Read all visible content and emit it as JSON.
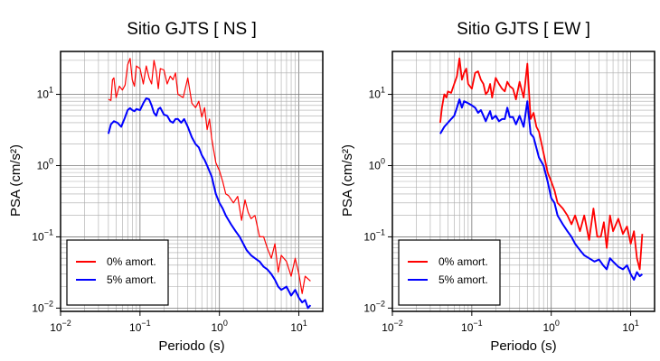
{
  "chart_data": [
    {
      "type": "line",
      "title": "Sitio GJTS [ NS ]",
      "xlabel": "Periodo (s)",
      "ylabel": "PSA (cm/s²)",
      "xscale": "log",
      "yscale": "log",
      "xlim": [
        0.01,
        20
      ],
      "ylim": [
        0.009,
        40
      ],
      "grid": true,
      "legend_position": "bottom-left",
      "x_ticks": [
        {
          "value": 0.01,
          "base": "10",
          "exp": "−2"
        },
        {
          "value": 0.1,
          "base": "10",
          "exp": "−1"
        },
        {
          "value": 1,
          "base": "10",
          "exp": "0"
        },
        {
          "value": 10,
          "base": "10",
          "exp": "1"
        }
      ],
      "y_ticks": [
        {
          "value": 0.01,
          "base": "10",
          "exp": "−2"
        },
        {
          "value": 0.1,
          "base": "10",
          "exp": "−1"
        },
        {
          "value": 1,
          "base": "10",
          "exp": "0"
        },
        {
          "value": 10,
          "base": "10",
          "exp": "1"
        }
      ],
      "series": [
        {
          "name": "0% amort.",
          "color": "#ff0000",
          "x": [
            0.04,
            0.043,
            0.045,
            0.047,
            0.05,
            0.055,
            0.06,
            0.065,
            0.07,
            0.075,
            0.08,
            0.085,
            0.09,
            0.1,
            0.11,
            0.12,
            0.13,
            0.14,
            0.15,
            0.16,
            0.17,
            0.18,
            0.2,
            0.22,
            0.24,
            0.26,
            0.28,
            0.3,
            0.35,
            0.4,
            0.45,
            0.5,
            0.55,
            0.6,
            0.65,
            0.7,
            0.75,
            0.8,
            0.9,
            1.0,
            1.1,
            1.2,
            1.3,
            1.5,
            1.7,
            1.9,
            2.1,
            2.3,
            2.5,
            2.8,
            3.2,
            3.6,
            4.0,
            4.5,
            5.0,
            5.5,
            6.0,
            7.0,
            8.0,
            9.0,
            10.0,
            11.0,
            12.0,
            14.0
          ],
          "y": [
            8.5,
            8.2,
            16.0,
            17.0,
            9.0,
            13.0,
            11.5,
            13.5,
            26.0,
            32.0,
            16.0,
            13.0,
            25.0,
            23.0,
            14.0,
            25.0,
            17.0,
            14.0,
            30.0,
            21.0,
            12.0,
            23.0,
            22.0,
            14.0,
            18.0,
            16.0,
            20.0,
            10.0,
            9.0,
            17.0,
            7.5,
            6.5,
            8.0,
            4.8,
            6.5,
            3.2,
            4.5,
            2.4,
            1.1,
            0.85,
            0.6,
            0.4,
            0.38,
            0.3,
            0.37,
            0.17,
            0.33,
            0.22,
            0.18,
            0.2,
            0.1,
            0.1,
            0.07,
            0.05,
            0.08,
            0.032,
            0.055,
            0.045,
            0.028,
            0.05,
            0.03,
            0.016,
            0.028,
            0.024
          ]
        },
        {
          "name": "5% amort.",
          "color": "#0000ff",
          "x": [
            0.04,
            0.043,
            0.047,
            0.052,
            0.058,
            0.065,
            0.07,
            0.075,
            0.08,
            0.085,
            0.09,
            0.1,
            0.11,
            0.12,
            0.13,
            0.14,
            0.15,
            0.16,
            0.17,
            0.18,
            0.19,
            0.2,
            0.22,
            0.24,
            0.26,
            0.28,
            0.3,
            0.33,
            0.36,
            0.4,
            0.45,
            0.5,
            0.55,
            0.6,
            0.65,
            0.7,
            0.8,
            0.9,
            1.0,
            1.1,
            1.2,
            1.4,
            1.6,
            1.8,
            2.0,
            2.2,
            2.5,
            2.8,
            3.2,
            3.6,
            4.0,
            4.5,
            5.0,
            5.5,
            6.0,
            7.0,
            8.0,
            9.0,
            10.0,
            11.0,
            12.0,
            13.0,
            14.0
          ],
          "y": [
            2.8,
            3.8,
            4.2,
            4.0,
            3.5,
            4.8,
            6.0,
            6.4,
            6.0,
            5.8,
            6.2,
            6.0,
            7.5,
            8.8,
            8.5,
            7.0,
            5.5,
            5.0,
            6.2,
            6.5,
            5.8,
            5.2,
            5.0,
            4.2,
            4.0,
            4.5,
            4.5,
            4.0,
            4.5,
            3.5,
            2.5,
            2.0,
            1.8,
            1.4,
            1.2,
            1.0,
            0.7,
            0.4,
            0.3,
            0.25,
            0.2,
            0.15,
            0.12,
            0.1,
            0.08,
            0.065,
            0.055,
            0.05,
            0.045,
            0.038,
            0.035,
            0.03,
            0.025,
            0.02,
            0.018,
            0.02,
            0.015,
            0.018,
            0.014,
            0.012,
            0.013,
            0.01,
            0.011
          ]
        }
      ]
    },
    {
      "type": "line",
      "title": "Sitio GJTS [ EW ]",
      "xlabel": "Periodo (s)",
      "ylabel": "PSA (cm/s²)",
      "xscale": "log",
      "yscale": "log",
      "xlim": [
        0.01,
        20
      ],
      "ylim": [
        0.009,
        40
      ],
      "grid": true,
      "legend_position": "bottom-left",
      "x_ticks": [
        {
          "value": 0.01,
          "base": "10",
          "exp": "−2"
        },
        {
          "value": 0.1,
          "base": "10",
          "exp": "−1"
        },
        {
          "value": 1,
          "base": "10",
          "exp": "0"
        },
        {
          "value": 10,
          "base": "10",
          "exp": "1"
        }
      ],
      "y_ticks": [
        {
          "value": 0.01,
          "base": "10",
          "exp": "−2"
        },
        {
          "value": 0.1,
          "base": "10",
          "exp": "−1"
        },
        {
          "value": 1,
          "base": "10",
          "exp": "0"
        },
        {
          "value": 10,
          "base": "10",
          "exp": "1"
        }
      ],
      "series": [
        {
          "name": "0% amort.",
          "color": "#ff0000",
          "x": [
            0.04,
            0.042,
            0.045,
            0.048,
            0.05,
            0.055,
            0.06,
            0.065,
            0.07,
            0.075,
            0.08,
            0.085,
            0.09,
            0.1,
            0.11,
            0.12,
            0.13,
            0.14,
            0.15,
            0.16,
            0.17,
            0.18,
            0.2,
            0.22,
            0.24,
            0.26,
            0.28,
            0.3,
            0.33,
            0.36,
            0.4,
            0.45,
            0.5,
            0.55,
            0.6,
            0.65,
            0.7,
            0.8,
            0.9,
            1.0,
            1.1,
            1.2,
            1.4,
            1.6,
            1.8,
            2.0,
            2.3,
            2.6,
            3.0,
            3.4,
            3.8,
            4.2,
            4.6,
            5.0,
            5.5,
            6.0,
            7.0,
            8.0,
            9.0,
            10.0,
            11.0,
            12.0,
            13.0,
            14.0
          ],
          "y": [
            4.0,
            6.5,
            10.0,
            9.0,
            11.0,
            10.5,
            14.0,
            18.0,
            32.0,
            16.0,
            20.0,
            23.0,
            14.0,
            12.0,
            20.0,
            21.0,
            16.0,
            14.0,
            10.0,
            11.0,
            14.0,
            9.0,
            17.0,
            14.0,
            12.0,
            11.0,
            15.0,
            13.0,
            12.0,
            8.5,
            15.0,
            9.0,
            27.0,
            4.5,
            5.5,
            3.5,
            3.0,
            1.5,
            0.8,
            0.6,
            0.45,
            0.3,
            0.25,
            0.2,
            0.15,
            0.2,
            0.12,
            0.2,
            0.09,
            0.25,
            0.1,
            0.1,
            0.16,
            0.07,
            0.2,
            0.12,
            0.18,
            0.11,
            0.14,
            0.08,
            0.12,
            0.05,
            0.035,
            0.11
          ]
        },
        {
          "name": "5% amort.",
          "color": "#0000ff",
          "x": [
            0.04,
            0.045,
            0.05,
            0.055,
            0.06,
            0.065,
            0.07,
            0.075,
            0.08,
            0.09,
            0.1,
            0.11,
            0.12,
            0.13,
            0.14,
            0.15,
            0.16,
            0.17,
            0.18,
            0.2,
            0.22,
            0.24,
            0.26,
            0.28,
            0.3,
            0.33,
            0.36,
            0.4,
            0.45,
            0.5,
            0.55,
            0.6,
            0.7,
            0.8,
            0.9,
            1.0,
            1.1,
            1.2,
            1.4,
            1.6,
            1.8,
            2.0,
            2.3,
            2.6,
            3.0,
            3.5,
            4.0,
            4.5,
            5.0,
            5.5,
            6.0,
            7.0,
            8.0,
            9.0,
            10.0,
            11.0,
            12.0,
            13.0,
            14.0
          ],
          "y": [
            2.8,
            3.5,
            4.0,
            4.5,
            5.0,
            6.5,
            8.5,
            6.5,
            8.0,
            7.5,
            7.0,
            6.5,
            5.5,
            6.0,
            5.0,
            4.2,
            5.0,
            5.8,
            4.5,
            5.0,
            4.2,
            4.5,
            4.5,
            6.5,
            4.8,
            4.8,
            3.8,
            5.0,
            3.5,
            8.0,
            2.8,
            2.5,
            1.3,
            1.0,
            0.6,
            0.35,
            0.3,
            0.2,
            0.15,
            0.12,
            0.1,
            0.08,
            0.065,
            0.055,
            0.05,
            0.045,
            0.048,
            0.04,
            0.035,
            0.05,
            0.045,
            0.038,
            0.035,
            0.04,
            0.03,
            0.025,
            0.032,
            0.028,
            0.03
          ]
        }
      ]
    }
  ]
}
